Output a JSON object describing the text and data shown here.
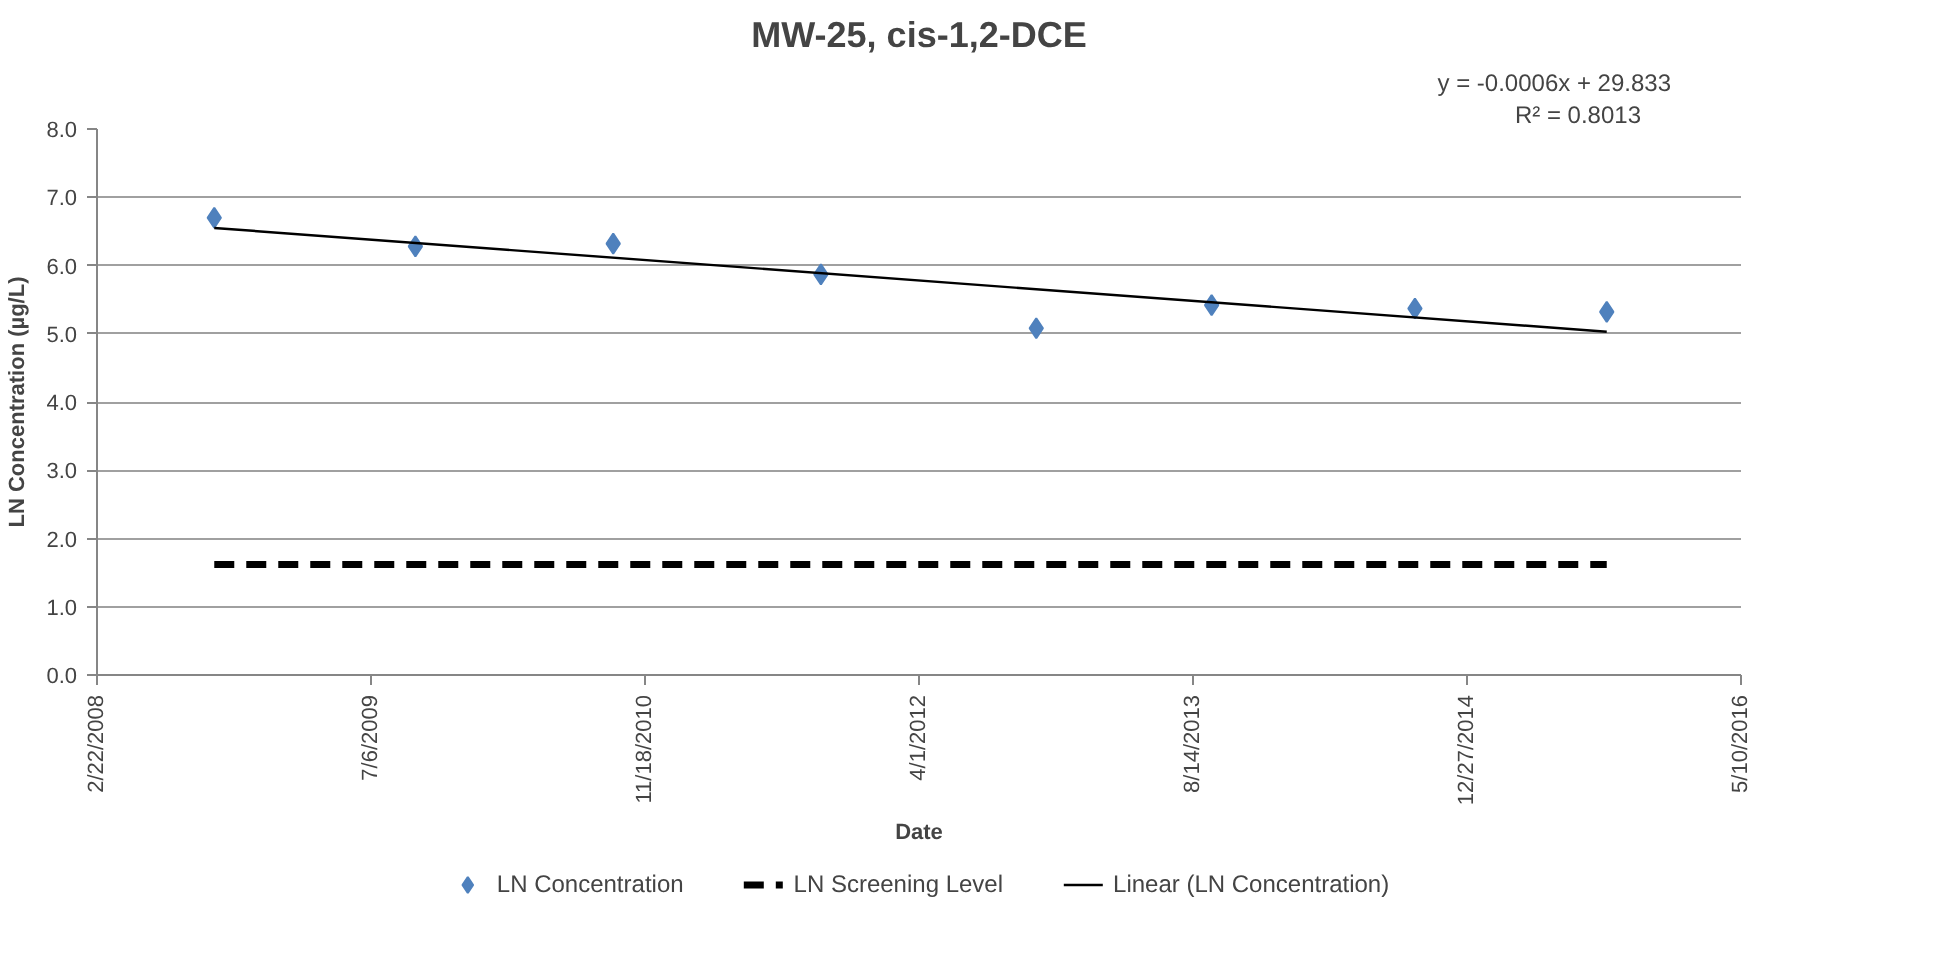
{
  "chart_data": {
    "type": "scatter",
    "title": "MW-25, cis-1,2-DCE",
    "xlabel": "Date",
    "ylabel": "LN Concentration (µg/L)",
    "annotations": [
      "y = -0.0006x + 29.833",
      "R² = 0.8013"
    ],
    "series": [
      {
        "name": "LN Concentration",
        "color": "#4f81bd",
        "marker": "diamond",
        "x": [
          "2008-09-23",
          "2009-09-25",
          "2010-09-21",
          "2011-10-05",
          "2012-11-01",
          "2013-09-17",
          "2014-09-23",
          "2015-09-08"
        ],
        "values": [
          6.7,
          6.28,
          6.32,
          5.87,
          5.08,
          5.42,
          5.37,
          5.32
        ]
      },
      {
        "name": "LN Screening Level",
        "type": "line",
        "color": "#000000",
        "line_style": "dashed",
        "x": [
          "2008-09-23",
          "2015-09-08"
        ],
        "values": [
          1.62,
          1.62
        ]
      },
      {
        "name": "Linear (LN Concentration)",
        "type": "line",
        "color": "#000000",
        "line_style": "solid",
        "x": [
          "2008-09-23",
          "2015-09-08"
        ],
        "values": [
          6.55,
          5.03
        ]
      }
    ],
    "xlim": [
      "2008-02-22",
      "2016-05-10"
    ],
    "xticks": [
      {
        "value": "2008-02-22",
        "label": "2/22/2008"
      },
      {
        "value": "2009-07-06",
        "label": "7/6/2009"
      },
      {
        "value": "2010-11-18",
        "label": "11/18/2010"
      },
      {
        "value": "2012-04-01",
        "label": "4/1/2012"
      },
      {
        "value": "2013-08-14",
        "label": "8/14/2013"
      },
      {
        "value": "2014-12-27",
        "label": "12/27/2014"
      },
      {
        "value": "2016-05-10",
        "label": "5/10/2016"
      }
    ],
    "ylim": [
      0,
      8
    ],
    "yticks": [
      {
        "value": 0,
        "label": "0.0"
      },
      {
        "value": 1,
        "label": "1.0"
      },
      {
        "value": 2,
        "label": "2.0"
      },
      {
        "value": 3,
        "label": "3.0"
      },
      {
        "value": 4,
        "label": "4.0"
      },
      {
        "value": 5,
        "label": "5.0"
      },
      {
        "value": 6,
        "label": "6.0"
      },
      {
        "value": 7,
        "label": "7.0"
      },
      {
        "value": 8,
        "label": "8.0"
      }
    ],
    "grid": "y",
    "legend": "bottom"
  }
}
